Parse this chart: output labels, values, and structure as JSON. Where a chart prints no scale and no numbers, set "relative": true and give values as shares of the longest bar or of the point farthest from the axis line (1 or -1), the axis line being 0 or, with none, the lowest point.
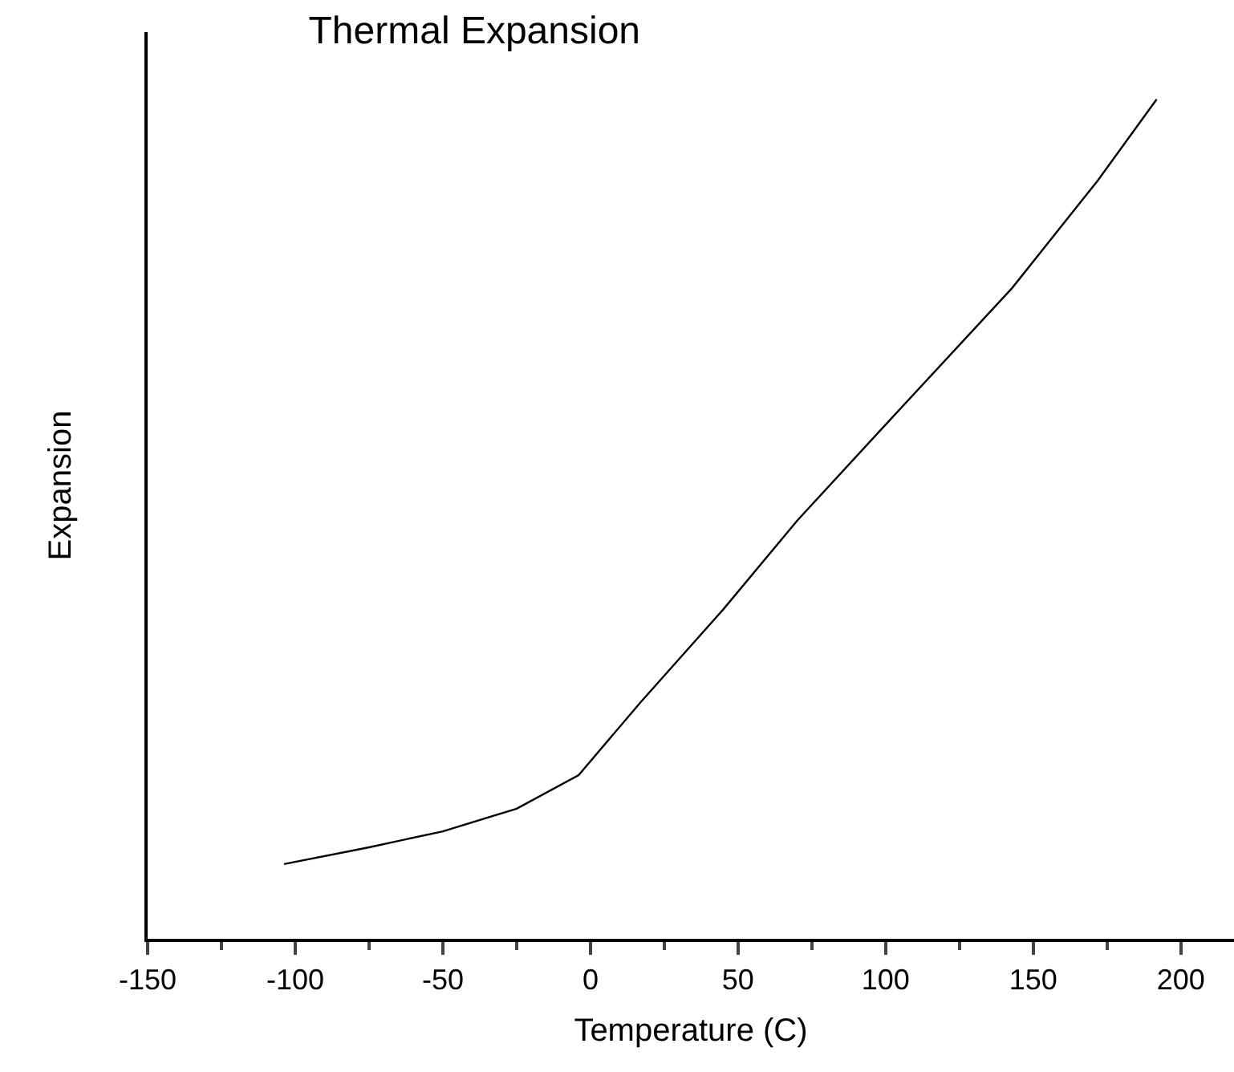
{
  "chart_data": {
    "type": "line",
    "title": "Thermal Expansion",
    "xlabel": "Temperature (C)",
    "ylabel": "Expansion",
    "relative": true,
    "x": [
      -103.8,
      -75,
      -50,
      -25,
      -4,
      16.8,
      24.9,
      44.9,
      70,
      97.5,
      142.8,
      171.8,
      191.8
    ],
    "series": [
      {
        "color": "#000000",
        "values": [
          0.089,
          0.109,
          0.128,
          0.155,
          0.195,
          0.281,
          0.313,
          0.392,
          0.498,
          0.603,
          0.775,
          0.903,
          1.0
        ]
      }
    ],
    "xlim": [
      -150,
      218
    ],
    "xticks": [
      -150,
      -100,
      -50,
      0,
      50,
      100,
      150,
      200
    ],
    "grid": false,
    "legend": false,
    "marker": "none",
    "line_style": "solid"
  }
}
